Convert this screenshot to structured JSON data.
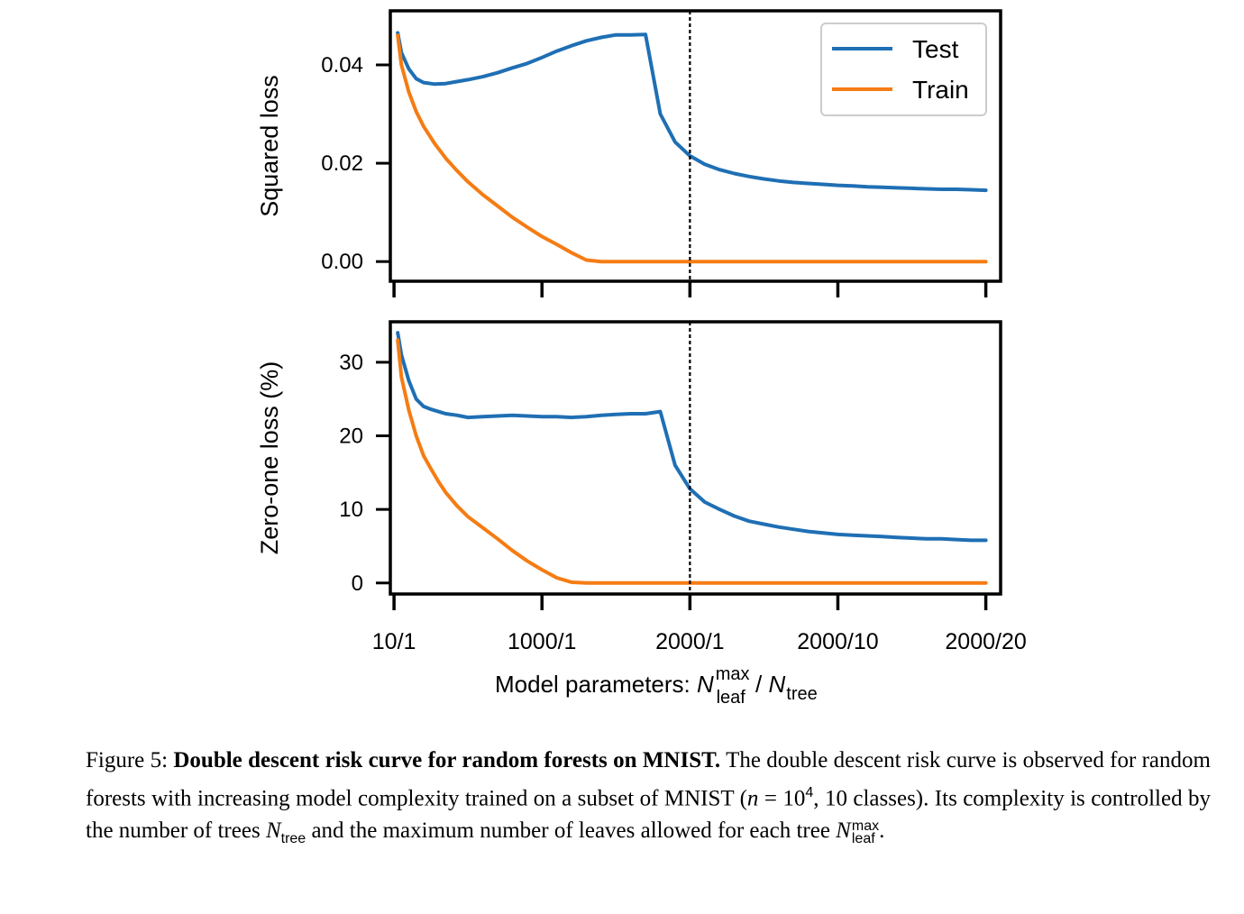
{
  "chart_data": [
    {
      "type": "line",
      "ylabel": "Squared loss",
      "ylim": [
        -0.004,
        0.051
      ],
      "yticks": [
        0.0,
        0.02,
        0.04
      ],
      "ytick_labels": [
        "0.00",
        "0.02",
        "0.04"
      ],
      "legend_placement": "top-right",
      "series": [
        {
          "name": "Test",
          "color": "#1f6fb4",
          "x": [
            0.05,
            0.1,
            0.2,
            0.3,
            0.4,
            0.55,
            0.7,
            0.85,
            1.0,
            1.2,
            1.4,
            1.6,
            1.8,
            2.0,
            2.2,
            2.4,
            2.6,
            2.8,
            3.0,
            3.2,
            3.4,
            3.6,
            3.8,
            4.0,
            4.2,
            4.4,
            4.6,
            4.8,
            5.0,
            5.2,
            5.4,
            5.6,
            5.8,
            6.0,
            6.2,
            6.4,
            6.6,
            6.8,
            7.0,
            7.2,
            7.4,
            7.6,
            7.8,
            8.0
          ],
          "y": [
            0.0465,
            0.0425,
            0.0392,
            0.0372,
            0.0364,
            0.0361,
            0.0362,
            0.0366,
            0.037,
            0.0376,
            0.0384,
            0.0394,
            0.0403,
            0.0415,
            0.0428,
            0.0439,
            0.0449,
            0.0456,
            0.0461,
            0.0461,
            0.0462,
            0.03,
            0.0243,
            0.0215,
            0.0198,
            0.0187,
            0.0179,
            0.0173,
            0.0168,
            0.0164,
            0.0161,
            0.0159,
            0.0157,
            0.0155,
            0.0154,
            0.0152,
            0.0151,
            0.015,
            0.0149,
            0.0148,
            0.0147,
            0.0147,
            0.0146,
            0.0145
          ]
        },
        {
          "name": "Train",
          "color": "#f57c13",
          "x": [
            0.05,
            0.1,
            0.2,
            0.3,
            0.4,
            0.55,
            0.7,
            0.85,
            1.0,
            1.2,
            1.4,
            1.6,
            1.8,
            2.0,
            2.2,
            2.4,
            2.6,
            2.8,
            3.0,
            3.2,
            3.4,
            3.6,
            3.8,
            4.0,
            4.2,
            4.4,
            4.6,
            4.8,
            5.0,
            5.2,
            5.4,
            5.6,
            5.8,
            6.0,
            6.2,
            6.4,
            6.6,
            6.8,
            7.0,
            7.2,
            7.4,
            7.6,
            7.8,
            8.0
          ],
          "y": [
            0.046,
            0.04,
            0.0345,
            0.0305,
            0.0275,
            0.024,
            0.021,
            0.0185,
            0.0162,
            0.0136,
            0.0113,
            0.009,
            0.007,
            0.0051,
            0.0035,
            0.0018,
            0.0003,
            0.0,
            0.0,
            0.0,
            0.0,
            0.0,
            0.0,
            0.0,
            0.0,
            0.0,
            0.0,
            0.0,
            0.0,
            0.0,
            0.0,
            0.0,
            0.0,
            0.0,
            0.0,
            0.0,
            0.0,
            0.0,
            0.0,
            0.0,
            0.0,
            0.0,
            0.0,
            0.0
          ]
        }
      ]
    },
    {
      "type": "line",
      "ylabel": "Zero-one loss (%)",
      "ylim": [
        -1.5,
        35.5
      ],
      "yticks": [
        0,
        10,
        20,
        30
      ],
      "ytick_labels": [
        "0",
        "10",
        "20",
        "30"
      ],
      "series": [
        {
          "name": "Test",
          "color": "#1f6fb4",
          "x": [
            0.05,
            0.1,
            0.2,
            0.3,
            0.4,
            0.5,
            0.6,
            0.7,
            0.85,
            1.0,
            1.2,
            1.4,
            1.6,
            1.8,
            2.0,
            2.2,
            2.4,
            2.6,
            2.8,
            3.0,
            3.2,
            3.4,
            3.6,
            3.8,
            4.0,
            4.2,
            4.4,
            4.6,
            4.8,
            5.0,
            5.2,
            5.4,
            5.6,
            5.8,
            6.0,
            6.2,
            6.4,
            6.6,
            6.8,
            7.0,
            7.2,
            7.4,
            7.6,
            7.8,
            8.0
          ],
          "y": [
            34.0,
            31.0,
            27.5,
            25.0,
            24.0,
            23.6,
            23.3,
            23.0,
            22.8,
            22.5,
            22.6,
            22.7,
            22.8,
            22.7,
            22.6,
            22.6,
            22.5,
            22.6,
            22.8,
            22.9,
            23.0,
            23.0,
            23.3,
            16.0,
            12.8,
            11.0,
            10.0,
            9.1,
            8.4,
            8.0,
            7.6,
            7.3,
            7.0,
            6.8,
            6.6,
            6.5,
            6.4,
            6.3,
            6.2,
            6.1,
            6.0,
            6.0,
            5.9,
            5.8,
            5.8
          ]
        },
        {
          "name": "Train",
          "color": "#f57c13",
          "x": [
            0.05,
            0.1,
            0.2,
            0.3,
            0.4,
            0.5,
            0.6,
            0.7,
            0.85,
            1.0,
            1.2,
            1.4,
            1.6,
            1.8,
            2.0,
            2.2,
            2.4,
            2.6,
            2.8,
            3.0,
            3.2,
            3.4,
            3.6,
            3.8,
            4.0,
            4.2,
            4.4,
            4.6,
            4.8,
            5.0,
            5.2,
            5.4,
            5.6,
            5.8,
            6.0,
            6.2,
            6.4,
            6.6,
            6.8,
            7.0,
            7.2,
            7.4,
            7.6,
            7.8,
            8.0
          ],
          "y": [
            33.0,
            28.0,
            23.5,
            20.0,
            17.3,
            15.5,
            13.8,
            12.3,
            10.5,
            9.0,
            7.5,
            6.0,
            4.4,
            3.0,
            1.8,
            0.7,
            0.1,
            0.0,
            0.0,
            0.0,
            0.0,
            0.0,
            0.0,
            0.0,
            0.0,
            0.0,
            0.0,
            0.0,
            0.0,
            0.0,
            0.0,
            0.0,
            0.0,
            0.0,
            0.0,
            0.0,
            0.0,
            0.0,
            0.0,
            0.0,
            0.0,
            0.0,
            0.0,
            0.0,
            0.0
          ]
        }
      ]
    }
  ],
  "x_axis": {
    "tick_positions": [
      0,
      2,
      4,
      6,
      8
    ],
    "tick_labels": [
      "10/1",
      "1000/1",
      "2000/1",
      "2000/10",
      "2000/20"
    ],
    "label_prefix": "Model parameters: ",
    "label_n1": "N",
    "label_n1_sup": "max",
    "label_n1_sub": "leaf",
    "label_sep": " / ",
    "label_n2": "N",
    "label_n2_sub": "tree",
    "xlim": [
      -0.05,
      8.2
    ],
    "vline_x": 4
  },
  "caption": {
    "figure_label": "Figure 5:",
    "bold_title": "Double descent risk curve for random forests on MNIST.",
    "text_1": "The double descent risk curve is observed for random forests with increasing model complexity trained on a subset of MNIST (",
    "math_n": "n",
    "math_eq": " = 10",
    "math_exp": "4",
    "text_2": ", 10 classes).  Its complexity is controlled by the number of trees ",
    "n_tree": "N",
    "n_tree_sub": "tree",
    "text_3": " and the maximum number of leaves allowed for each tree ",
    "n_leaf": "N",
    "n_leaf_sup": "max",
    "n_leaf_sub": "leaf",
    "text_end": "."
  }
}
